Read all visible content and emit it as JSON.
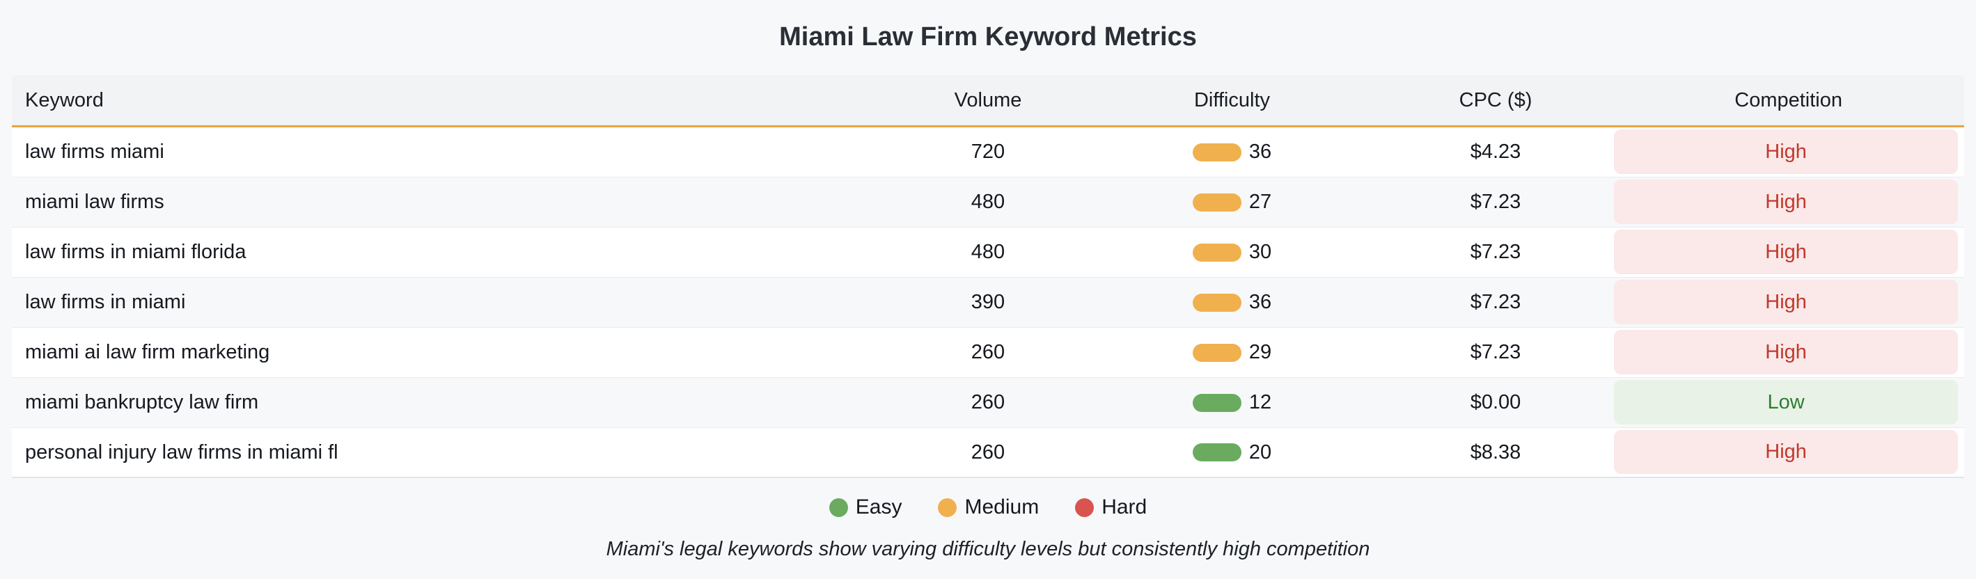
{
  "title": "Miami Law Firm Keyword Metrics",
  "chart_data": {
    "type": "table",
    "title": "Miami Law Firm Keyword Metrics",
    "columns": [
      "Keyword",
      "Volume",
      "Difficulty",
      "CPC ($)",
      "Competition"
    ],
    "rows": [
      {
        "keyword": "law firms miami",
        "volume": "720",
        "difficulty": "36",
        "difficulty_level": "Medium",
        "cpc": "$4.23",
        "competition": "High"
      },
      {
        "keyword": "miami law firms",
        "volume": "480",
        "difficulty": "27",
        "difficulty_level": "Medium",
        "cpc": "$7.23",
        "competition": "High"
      },
      {
        "keyword": "law firms in miami florida",
        "volume": "480",
        "difficulty": "30",
        "difficulty_level": "Medium",
        "cpc": "$7.23",
        "competition": "High"
      },
      {
        "keyword": "law firms in miami",
        "volume": "390",
        "difficulty": "36",
        "difficulty_level": "Medium",
        "cpc": "$7.23",
        "competition": "High"
      },
      {
        "keyword": "miami ai law firm marketing",
        "volume": "260",
        "difficulty": "29",
        "difficulty_level": "Medium",
        "cpc": "$7.23",
        "competition": "High"
      },
      {
        "keyword": "miami bankruptcy law firm",
        "volume": "260",
        "difficulty": "12",
        "difficulty_level": "Easy",
        "cpc": "$0.00",
        "competition": "Low"
      },
      {
        "keyword": "personal injury law firms in miami fl",
        "volume": "260",
        "difficulty": "20",
        "difficulty_level": "Easy",
        "cpc": "$8.38",
        "competition": "High"
      }
    ],
    "legend": [
      {
        "label": "Easy",
        "color": "#6aab60"
      },
      {
        "label": "Medium",
        "color": "#f0b04e"
      },
      {
        "label": "Hard",
        "color": "#d9534f"
      }
    ],
    "caption": "Miami's legal keywords show varying difficulty levels but consistently high competition",
    "layout": {
      "legend_position": "bottom-center",
      "header_accent_color": "#e9a33c",
      "header_background": "#f1f3f5",
      "row_alt_background": "#f7f8fa",
      "high_text_color": "#c0392b",
      "high_background": "#fbe8e8",
      "low_text_color": "#2e7d32",
      "low_background": "#e9f2e7"
    }
  }
}
